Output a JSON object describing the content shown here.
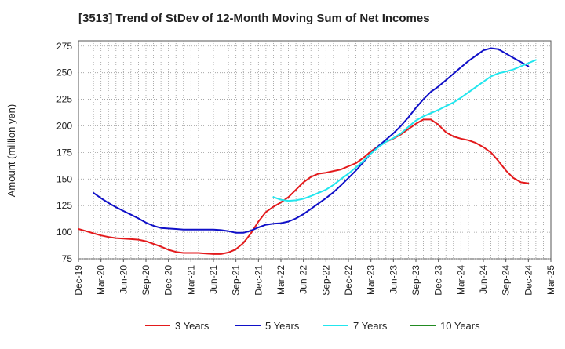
{
  "chart_data": {
    "type": "line",
    "title": "[3513]  Trend of StDev of 12-Month Moving Sum of Net Incomes",
    "xlabel": "",
    "ylabel": "Amount (million yen)",
    "ylim": [
      75,
      280
    ],
    "yticks": [
      75,
      100,
      125,
      150,
      175,
      200,
      225,
      250,
      275
    ],
    "x_start": "Dec-19",
    "x_ticks": [
      "Dec-19",
      "Mar-20",
      "Jun-20",
      "Sep-20",
      "Dec-20",
      "Mar-21",
      "Jun-21",
      "Sep-21",
      "Dec-21",
      "Mar-22",
      "Jun-22",
      "Sep-22",
      "Dec-22",
      "Mar-23",
      "Jun-23",
      "Sep-23",
      "Dec-23",
      "Mar-24",
      "Jun-24",
      "Sep-24",
      "Dec-24",
      "Mar-25"
    ],
    "grid": true,
    "legend_position": "bottom",
    "series": [
      {
        "name": "3 Years",
        "color": "#e31a1c",
        "points": [
          [
            "Dec-19",
            103
          ],
          [
            "Jan-20",
            101
          ],
          [
            "Feb-20",
            99
          ],
          [
            "Mar-20",
            97
          ],
          [
            "Apr-20",
            95.5
          ],
          [
            "May-20",
            94.5
          ],
          [
            "Jun-20",
            94
          ],
          [
            "Jul-20",
            93.5
          ],
          [
            "Aug-20",
            93
          ],
          [
            "Sep-20",
            91.5
          ],
          [
            "Oct-20",
            89
          ],
          [
            "Nov-20",
            86.5
          ],
          [
            "Dec-20",
            83.5
          ],
          [
            "Jan-21",
            81.5
          ],
          [
            "Feb-21",
            80.5
          ],
          [
            "Mar-21",
            80.5
          ],
          [
            "Apr-21",
            80.5
          ],
          [
            "May-21",
            80
          ],
          [
            "Jun-21",
            79.5
          ],
          [
            "Jul-21",
            79.5
          ],
          [
            "Aug-21",
            81
          ],
          [
            "Sep-21",
            84
          ],
          [
            "Oct-21",
            90
          ],
          [
            "Nov-21",
            99
          ],
          [
            "Dec-21",
            110
          ],
          [
            "Jan-22",
            119
          ],
          [
            "Feb-22",
            124
          ],
          [
            "Mar-22",
            128
          ],
          [
            "Apr-22",
            133
          ],
          [
            "May-22",
            140
          ],
          [
            "Jun-22",
            147
          ],
          [
            "Jul-22",
            152
          ],
          [
            "Aug-22",
            155
          ],
          [
            "Sep-22",
            156
          ],
          [
            "Oct-22",
            157.5
          ],
          [
            "Nov-22",
            159
          ],
          [
            "Dec-22",
            162
          ],
          [
            "Jan-23",
            165
          ],
          [
            "Feb-23",
            170
          ],
          [
            "Mar-23",
            176
          ],
          [
            "Apr-23",
            181
          ],
          [
            "May-23",
            185
          ],
          [
            "Jun-23",
            188
          ],
          [
            "Jul-23",
            192
          ],
          [
            "Aug-23",
            197
          ],
          [
            "Sep-23",
            202
          ],
          [
            "Oct-23",
            206
          ],
          [
            "Nov-23",
            206
          ],
          [
            "Dec-23",
            201
          ],
          [
            "Jan-24",
            194
          ],
          [
            "Feb-24",
            190
          ],
          [
            "Mar-24",
            188
          ],
          [
            "Apr-24",
            186.5
          ],
          [
            "May-24",
            184
          ],
          [
            "Jun-24",
            180
          ],
          [
            "Jul-24",
            175
          ],
          [
            "Aug-24",
            167
          ],
          [
            "Sep-24",
            158
          ],
          [
            "Oct-24",
            151
          ],
          [
            "Nov-24",
            147
          ],
          [
            "Dec-24",
            146
          ]
        ]
      },
      {
        "name": "5 Years",
        "color": "#1010c8",
        "points": [
          [
            "Feb-20",
            137
          ],
          [
            "Mar-20",
            132
          ],
          [
            "Apr-20",
            127.5
          ],
          [
            "May-20",
            123.5
          ],
          [
            "Jun-20",
            120
          ],
          [
            "Jul-20",
            116.5
          ],
          [
            "Aug-20",
            113
          ],
          [
            "Sep-20",
            109
          ],
          [
            "Oct-20",
            106
          ],
          [
            "Nov-20",
            104
          ],
          [
            "Dec-20",
            103.5
          ],
          [
            "Jan-21",
            103
          ],
          [
            "Feb-21",
            102.5
          ],
          [
            "Mar-21",
            102.5
          ],
          [
            "Apr-21",
            102.5
          ],
          [
            "May-21",
            102.5
          ],
          [
            "Jun-21",
            102.5
          ],
          [
            "Jul-21",
            102
          ],
          [
            "Aug-21",
            101
          ],
          [
            "Sep-21",
            99.5
          ],
          [
            "Oct-21",
            99.5
          ],
          [
            "Nov-21",
            101.5
          ],
          [
            "Dec-21",
            104.5
          ],
          [
            "Jan-22",
            107
          ],
          [
            "Feb-22",
            108
          ],
          [
            "Mar-22",
            108.5
          ],
          [
            "Apr-22",
            110
          ],
          [
            "May-22",
            113
          ],
          [
            "Jun-22",
            117
          ],
          [
            "Jul-22",
            122
          ],
          [
            "Aug-22",
            127
          ],
          [
            "Sep-22",
            132
          ],
          [
            "Oct-22",
            137.5
          ],
          [
            "Nov-22",
            144
          ],
          [
            "Dec-22",
            151
          ],
          [
            "Jan-23",
            158
          ],
          [
            "Feb-23",
            166
          ],
          [
            "Mar-23",
            174
          ],
          [
            "Apr-23",
            181
          ],
          [
            "May-23",
            187
          ],
          [
            "Jun-23",
            193
          ],
          [
            "Jul-23",
            200
          ],
          [
            "Aug-23",
            208
          ],
          [
            "Sep-23",
            217
          ],
          [
            "Oct-23",
            225
          ],
          [
            "Nov-23",
            232
          ],
          [
            "Dec-23",
            237
          ],
          [
            "Jan-24",
            243
          ],
          [
            "Feb-24",
            249
          ],
          [
            "Mar-24",
            255
          ],
          [
            "Apr-24",
            261
          ],
          [
            "May-24",
            266
          ],
          [
            "Jun-24",
            271
          ],
          [
            "Jul-24",
            273
          ],
          [
            "Aug-24",
            272
          ],
          [
            "Sep-24",
            268
          ],
          [
            "Oct-24",
            264
          ],
          [
            "Nov-24",
            260
          ],
          [
            "Dec-24",
            256
          ]
        ]
      },
      {
        "name": "7 Years",
        "color": "#22e6ee",
        "points": [
          [
            "Feb-22",
            133
          ],
          [
            "Mar-22",
            130.5
          ],
          [
            "Apr-22",
            129.5
          ],
          [
            "May-22",
            130
          ],
          [
            "Jun-22",
            131.5
          ],
          [
            "Jul-22",
            134
          ],
          [
            "Aug-22",
            137
          ],
          [
            "Sep-22",
            140
          ],
          [
            "Oct-22",
            144.5
          ],
          [
            "Nov-22",
            150
          ],
          [
            "Dec-22",
            155
          ],
          [
            "Jan-23",
            161
          ],
          [
            "Feb-23",
            167
          ],
          [
            "Mar-23",
            174
          ],
          [
            "Apr-23",
            180
          ],
          [
            "May-23",
            185
          ],
          [
            "Jun-23",
            188.5
          ],
          [
            "Jul-23",
            193
          ],
          [
            "Aug-23",
            199
          ],
          [
            "Sep-23",
            205
          ],
          [
            "Oct-23",
            209
          ],
          [
            "Nov-23",
            212
          ],
          [
            "Dec-23",
            215
          ],
          [
            "Jan-24",
            218.5
          ],
          [
            "Feb-24",
            222
          ],
          [
            "Mar-24",
            226.5
          ],
          [
            "Apr-24",
            231.5
          ],
          [
            "May-24",
            236.5
          ],
          [
            "Jun-24",
            241.5
          ],
          [
            "Jul-24",
            246.5
          ],
          [
            "Aug-24",
            249.5
          ],
          [
            "Sep-24",
            251
          ],
          [
            "Oct-24",
            253
          ],
          [
            "Nov-24",
            256
          ],
          [
            "Dec-24",
            259
          ],
          [
            "Jan-25",
            262
          ]
        ]
      },
      {
        "name": "10 Years",
        "color": "#228b22",
        "points": []
      }
    ]
  }
}
